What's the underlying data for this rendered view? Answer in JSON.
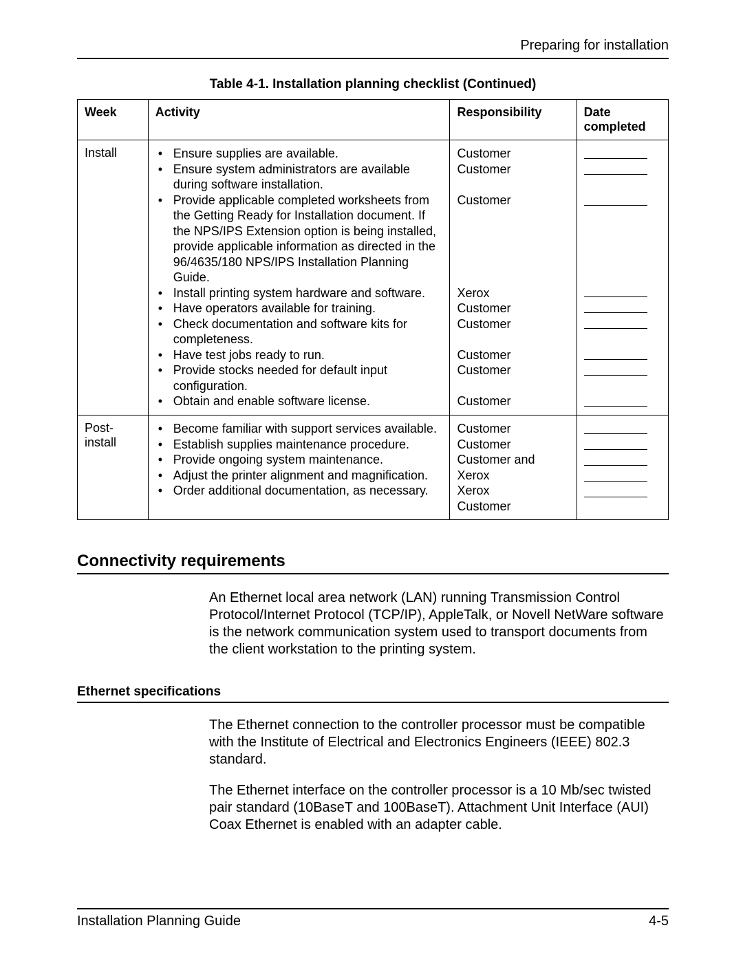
{
  "header": {
    "running_head": "Preparing for installation"
  },
  "table": {
    "caption": "Table 4-1. Installation planning checklist (Continued)",
    "columns": {
      "week": "Week",
      "activity": "Activity",
      "responsibility": "Responsibility",
      "date_completed": "Date completed"
    },
    "rows": [
      {
        "week": "Install",
        "activities": [
          "Ensure supplies are available.",
          "Ensure system administrators are available during software installation.",
          "Provide applicable completed worksheets from the Getting Ready for Installation document. If the NPS/IPS Extension option is being installed, provide applicable information as directed in the 96/4635/180 NPS/IPS Installation Planning Guide.",
          "Install printing system hardware and software.",
          "Have operators available for training.",
          "Check documentation and software kits for completeness.",
          "Have test jobs ready to run.",
          "Provide stocks needed for default input configuration.",
          "Obtain and enable software license."
        ],
        "responsibilities": [
          "Customer",
          "Customer",
          "Customer",
          "Xerox",
          "Customer",
          "Customer",
          "Customer",
          "Customer",
          "Customer"
        ],
        "resp_gaps_after": [
          0,
          1,
          5,
          0,
          0,
          1,
          0,
          1,
          0
        ],
        "date_gaps_after": [
          0,
          1,
          5,
          0,
          0,
          1,
          0,
          1,
          0
        ]
      },
      {
        "week": "Post-install",
        "activities": [
          "Become familiar with support services available.",
          "Establish supplies maintenance procedure.",
          "Provide ongoing system maintenance.",
          "Adjust the printer alignment and magnification.",
          "Order additional documentation, as necessary."
        ],
        "responsibilities": [
          "Customer",
          "Customer",
          "Customer and Xerox",
          "Xerox",
          "Customer"
        ],
        "resp_gaps_after": [
          0,
          0,
          0,
          0,
          0
        ],
        "date_gaps_after": [
          0,
          0,
          0,
          0,
          0
        ]
      }
    ]
  },
  "sections": {
    "connectivity": {
      "title": "Connectivity requirements",
      "para1": "An Ethernet local area network (LAN) running Transmission Control Protocol/Internet Protocol (TCP/IP), AppleTalk, or Novell NetWare software is the network communication system used to transport documents from the client workstation to the printing system."
    },
    "ethernet": {
      "title": "Ethernet specifications",
      "para1": "The Ethernet connection to the controller processor must be compatible with the Institute of Electrical and Electronics Engineers (IEEE) 802.3 standard.",
      "para2": "The Ethernet interface on the controller processor is a 10 Mb/sec twisted pair standard (10BaseT and 100BaseT). Attachment Unit Interface (AUI) Coax Ethernet is enabled with an adapter cable."
    }
  },
  "footer": {
    "left": "Installation Planning Guide",
    "right": "4-5"
  }
}
